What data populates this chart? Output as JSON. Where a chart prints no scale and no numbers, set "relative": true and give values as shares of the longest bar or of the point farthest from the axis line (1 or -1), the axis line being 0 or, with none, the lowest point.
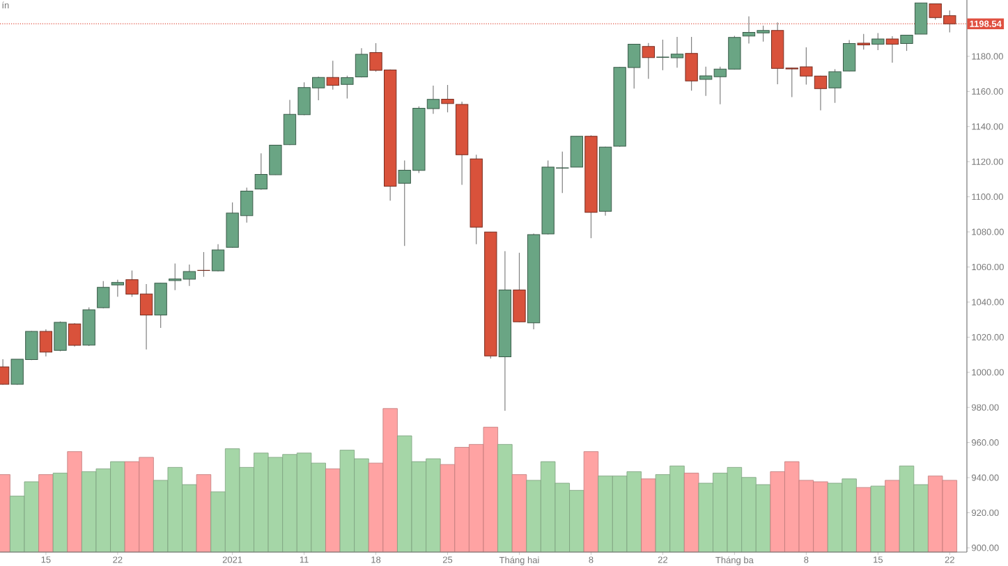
{
  "chart_data": [
    {
      "type": "candlestick",
      "title": "ín",
      "categories": [
        null,
        null,
        null,
        "15",
        null,
        null,
        null,
        null,
        "22",
        null,
        null,
        null,
        null,
        null,
        null,
        null,
        "2021",
        null,
        null,
        null,
        null,
        "11",
        null,
        null,
        null,
        null,
        "18",
        null,
        null,
        null,
        null,
        "25",
        null,
        null,
        null,
        null,
        "Tháng hai",
        null,
        null,
        null,
        null,
        "8",
        null,
        null,
        null,
        null,
        "22",
        null,
        null,
        null,
        null,
        "Tháng ba",
        null,
        null,
        null,
        null,
        "8",
        null,
        null,
        null,
        null,
        "15",
        null,
        null,
        null,
        null,
        "22"
      ],
      "ohlc": [
        [
          1003.1,
          1007.5,
          993,
          993.2
        ],
        [
          993.2,
          1007.5,
          993,
          1007.5
        ],
        [
          1007.3,
          1023.5,
          1007,
          1023.3
        ],
        [
          1023.3,
          1024.5,
          1009,
          1011.5
        ],
        [
          1012.5,
          1029,
          1012,
          1028.5
        ],
        [
          1027.6,
          1028,
          1014.7,
          1015.4
        ],
        [
          1015.5,
          1037,
          1015,
          1035.6
        ],
        [
          1036.8,
          1052,
          1036.5,
          1048.4
        ],
        [
          1049.8,
          1052.8,
          1043,
          1051.2
        ],
        [
          1052.8,
          1058,
          1043,
          1044.5
        ],
        [
          1044.6,
          1050.3,
          1013,
          1032.6
        ],
        [
          1032.6,
          1051,
          1025.3,
          1050.8
        ],
        [
          1052.3,
          1062,
          1046.8,
          1053.2
        ],
        [
          1053.1,
          1061.4,
          1049.2,
          1057.4
        ],
        [
          1058.1,
          1068.5,
          1054.4,
          1058
        ],
        [
          1057.8,
          1073,
          1057.5,
          1069.7
        ],
        [
          1071.2,
          1096.8,
          1071,
          1090.7
        ],
        [
          1089.3,
          1105.2,
          1085.3,
          1103.2
        ],
        [
          1104.4,
          1124.7,
          1104,
          1112.7
        ],
        [
          1112.6,
          1129.5,
          1112.5,
          1129.4
        ],
        [
          1129.7,
          1155.2,
          1129.5,
          1147
        ],
        [
          1146.8,
          1165.2,
          1146.5,
          1162.2
        ],
        [
          1162,
          1168.5,
          1155,
          1168
        ],
        [
          1168,
          1177.5,
          1161,
          1163.5
        ],
        [
          1164,
          1169,
          1156,
          1167.9
        ],
        [
          1168.3,
          1184.6,
          1168,
          1181.2
        ],
        [
          1182.2,
          1187.5,
          1171.3,
          1172
        ],
        [
          1172.2,
          1172.5,
          1097.8,
          1106
        ],
        [
          1107.7,
          1120.7,
          1072,
          1115.1
        ],
        [
          1115,
          1151.5,
          1113.5,
          1150.4
        ],
        [
          1150.2,
          1163.3,
          1147.3,
          1155.5
        ],
        [
          1155.6,
          1163.7,
          1148.1,
          1153.1
        ],
        [
          1152.6,
          1154.2,
          1106.8,
          1124
        ],
        [
          1121.6,
          1124,
          1073,
          1082.7
        ],
        [
          1079.9,
          1080,
          1007.8,
          1009.3
        ],
        [
          1008.8,
          1069,
          978.1,
          1046.9
        ],
        [
          1046.9,
          1068.1,
          1028.5,
          1028.8
        ],
        [
          1028.2,
          1079,
          1024.5,
          1078.4
        ],
        [
          1078.8,
          1120.7,
          1078.5,
          1116.9
        ],
        [
          1116.3,
          1125.7,
          1102.1,
          1116.5
        ],
        [
          1116.9,
          1134.5,
          1116.9,
          1134.5
        ],
        [
          1134.5,
          1135,
          1076.4,
          1091.1
        ],
        [
          1091.7,
          1128.5,
          1089.3,
          1128.3
        ],
        [
          1128.8,
          1174,
          1128.5,
          1173.7
        ],
        [
          1173.6,
          1187,
          1161.6,
          1186.9
        ],
        [
          1185.6,
          1187.6,
          1167.2,
          1179.3
        ],
        [
          1179.4,
          1189.5,
          1172.1,
          1179.6
        ],
        [
          1179.2,
          1191.1,
          1173.5,
          1181.3
        ],
        [
          1181.7,
          1191.1,
          1160.4,
          1166
        ],
        [
          1166.9,
          1174.1,
          1157.5,
          1168.9
        ],
        [
          1168.4,
          1174.1,
          1152.7,
          1172.7
        ],
        [
          1172.7,
          1191.7,
          1172.5,
          1190.8
        ],
        [
          1191.6,
          1202.8,
          1187.3,
          1193.7
        ],
        [
          1193.4,
          1197.5,
          1188.4,
          1194.7
        ],
        [
          1194.7,
          1199.3,
          1164.1,
          1173.1
        ],
        [
          1173.3,
          1173.5,
          1156.8,
          1172.8
        ],
        [
          1174,
          1185.1,
          1163.9,
          1168.8
        ],
        [
          1168.8,
          1169,
          1149.2,
          1161.6
        ],
        [
          1162,
          1172.7,
          1153.5,
          1171.2
        ],
        [
          1171.6,
          1189.3,
          1171.5,
          1187.3
        ],
        [
          1187.5,
          1192.8,
          1183.8,
          1186.5
        ],
        [
          1186.9,
          1193.3,
          1183.5,
          1189.9
        ],
        [
          1189.9,
          1191.5,
          1176.4,
          1186.9
        ],
        [
          1187.3,
          1192.2,
          1183.1,
          1192.1
        ],
        [
          1192.7,
          1210.4,
          1192.7,
          1210.4
        ],
        [
          1209.9,
          1210,
          1200.9,
          1202.1
        ],
        [
          1203.2,
          1206.1,
          1193.7,
          1198.54
        ]
      ],
      "colors": [
        "#d9523b",
        "#6aa584",
        "#6aa584",
        "#d9523b",
        "#6aa584",
        "#d9523b",
        "#6aa584",
        "#6aa584",
        "#6aa584",
        "#d9523b",
        "#d9523b",
        "#6aa584",
        "#6aa584",
        "#6aa584",
        "#d9523b",
        "#6aa584",
        "#6aa584",
        "#6aa584",
        "#6aa584",
        "#6aa584",
        "#6aa584",
        "#6aa584",
        "#6aa584",
        "#d9523b",
        "#6aa584",
        "#6aa584",
        "#d9523b",
        "#d9523b",
        "#6aa584",
        "#6aa584",
        "#6aa584",
        "#d9523b",
        "#d9523b",
        "#d9523b",
        "#d9523b",
        "#6aa584",
        "#d9523b",
        "#6aa584",
        "#6aa584",
        "#6aa584",
        "#6aa584",
        "#d9523b",
        "#6aa584",
        "#6aa584",
        "#6aa584",
        "#d9523b",
        "#6aa584",
        "#6aa584",
        "#d9523b",
        "#6aa584",
        "#6aa584",
        "#6aa584",
        "#6aa584",
        "#6aa584",
        "#d9523b",
        "#d9523b",
        "#d9523b",
        "#d9523b",
        "#6aa584",
        "#6aa584",
        "#d9523b",
        "#6aa584",
        "#d9523b",
        "#6aa584",
        "#6aa584",
        "#d9523b",
        "#d9523b"
      ],
      "ylim": [
        897.6,
        1212.1
      ],
      "yticks": [
        {
          "value": 900,
          "label": "900.00"
        },
        {
          "value": 920,
          "label": "920.00"
        },
        {
          "value": 940,
          "label": "940.00"
        },
        {
          "value": 960,
          "label": "960.00"
        },
        {
          "value": 980,
          "label": "980.00"
        },
        {
          "value": 1000,
          "label": "1000.00"
        },
        {
          "value": 1020,
          "label": "1020.00"
        },
        {
          "value": 1040,
          "label": "1040.00"
        },
        {
          "value": 1060,
          "label": "1060.00"
        },
        {
          "value": 1080,
          "label": "1080.00"
        },
        {
          "value": 1100,
          "label": "1100.00"
        },
        {
          "value": 1120,
          "label": "1120.00"
        },
        {
          "value": 1140,
          "label": "1140.00"
        },
        {
          "value": 1160,
          "label": "1160.00"
        },
        {
          "value": 1180,
          "label": "1180.00"
        },
        {
          "value": 1200,
          "label": null
        }
      ],
      "ref_lines": [
        {
          "axis": "y",
          "value": 1198.54,
          "label": "1198.54",
          "color": "#e05040",
          "line_style": "dotted"
        }
      ]
    },
    {
      "type": "bar",
      "relative": true,
      "tick_labels": false,
      "categories": [
        null,
        null,
        null,
        null,
        null,
        null,
        null,
        null,
        null,
        null,
        null,
        null,
        null,
        null,
        null,
        null,
        null,
        null,
        null,
        null,
        null,
        null,
        null,
        null,
        null,
        null,
        null,
        null,
        null,
        null,
        null,
        null,
        null,
        null,
        null,
        null,
        null,
        null,
        null,
        null,
        null,
        null,
        null,
        null,
        null,
        null,
        null,
        null,
        null,
        null,
        null,
        null,
        null,
        null,
        null,
        null,
        null,
        null,
        null,
        null,
        null,
        null,
        null,
        null,
        null,
        null,
        null
      ],
      "values": [
        0.54,
        0.39,
        0.49,
        0.54,
        0.55,
        0.7,
        0.56,
        0.58,
        0.63,
        0.63,
        0.66,
        0.5,
        0.59,
        0.47,
        0.54,
        0.42,
        0.72,
        0.59,
        0.69,
        0.66,
        0.68,
        0.69,
        0.62,
        0.58,
        0.71,
        0.65,
        0.62,
        1,
        0.81,
        0.63,
        0.65,
        0.61,
        0.73,
        0.75,
        0.87,
        0.75,
        0.54,
        0.5,
        0.63,
        0.48,
        0.43,
        0.7,
        0.53,
        0.53,
        0.56,
        0.51,
        0.54,
        0.6,
        0.55,
        0.48,
        0.55,
        0.59,
        0.52,
        0.47,
        0.56,
        0.63,
        0.5,
        0.49,
        0.48,
        0.51,
        0.45,
        0.46,
        0.5,
        0.6,
        0.47,
        0.53,
        0.5
      ],
      "colors": [
        "#ffa3a3",
        "#a5d6a7",
        "#a5d6a7",
        "#ffa3a3",
        "#a5d6a7",
        "#ffa3a3",
        "#a5d6a7",
        "#a5d6a7",
        "#a5d6a7",
        "#ffa3a3",
        "#ffa3a3",
        "#a5d6a7",
        "#a5d6a7",
        "#a5d6a7",
        "#ffa3a3",
        "#a5d6a7",
        "#a5d6a7",
        "#a5d6a7",
        "#a5d6a7",
        "#a5d6a7",
        "#a5d6a7",
        "#a5d6a7",
        "#a5d6a7",
        "#ffa3a3",
        "#a5d6a7",
        "#a5d6a7",
        "#ffa3a3",
        "#ffa3a3",
        "#a5d6a7",
        "#a5d6a7",
        "#a5d6a7",
        "#ffa3a3",
        "#ffa3a3",
        "#ffa3a3",
        "#ffa3a3",
        "#a5d6a7",
        "#ffa3a3",
        "#a5d6a7",
        "#a5d6a7",
        "#a5d6a7",
        "#a5d6a7",
        "#ffa3a3",
        "#a5d6a7",
        "#a5d6a7",
        "#a5d6a7",
        "#ffa3a3",
        "#a5d6a7",
        "#a5d6a7",
        "#ffa3a3",
        "#a5d6a7",
        "#a5d6a7",
        "#a5d6a7",
        "#a5d6a7",
        "#a5d6a7",
        "#ffa3a3",
        "#ffa3a3",
        "#ffa3a3",
        "#ffa3a3",
        "#a5d6a7",
        "#a5d6a7",
        "#ffa3a3",
        "#a5d6a7",
        "#ffa3a3",
        "#a5d6a7",
        "#a5d6a7",
        "#ffa3a3",
        "#ffa3a3"
      ]
    }
  ]
}
